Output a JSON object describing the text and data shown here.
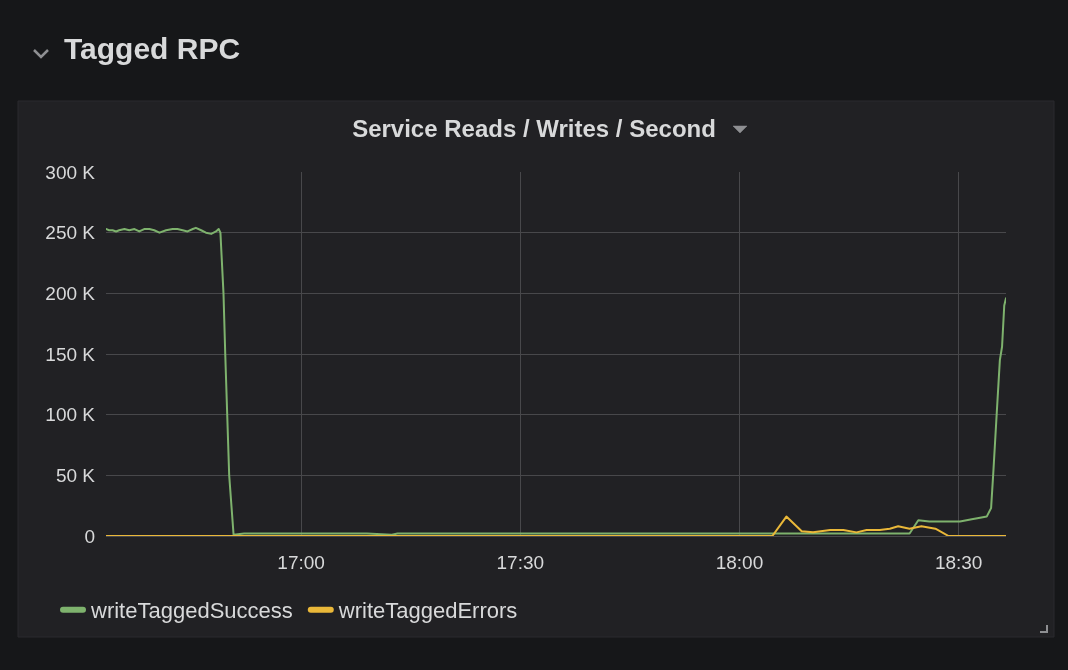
{
  "chart_data": {
    "type": "line",
    "title": "Service Reads / Writes / Second",
    "annotations": [
      "Tagged RPC"
    ],
    "series": [
      {
        "name": "writeTaggedSuccess",
        "color": "#7eb26d",
        "x": [
          16.555,
          16.562,
          16.57,
          16.578,
          16.585,
          16.597,
          16.608,
          16.62,
          16.631,
          16.642,
          16.654,
          16.665,
          16.677,
          16.692,
          16.707,
          16.718,
          16.73,
          16.741,
          16.753,
          16.76,
          16.772,
          16.783,
          16.795,
          16.806,
          16.812,
          16.816,
          16.823,
          16.827,
          16.836,
          16.846,
          16.87,
          16.95,
          17.05,
          17.15,
          17.207,
          17.22,
          17.4,
          17.6,
          17.8,
          18.0,
          18.2,
          18.388,
          18.408,
          18.433,
          18.467,
          18.503,
          18.533,
          18.549,
          18.564,
          18.574,
          18.579,
          18.587,
          18.594,
          18.599,
          18.604,
          18.608
        ],
        "values": [
          253000,
          252000,
          252000,
          251000,
          252000,
          253000,
          252000,
          253000,
          251000,
          253000,
          253000,
          252000,
          250000,
          252000,
          253000,
          253000,
          252000,
          251000,
          253000,
          254000,
          252000,
          250000,
          249000,
          251000,
          253000,
          250000,
          200000,
          150000,
          50000,
          1000,
          2000,
          2000,
          2000,
          2000,
          1000,
          2000,
          2000,
          2000,
          2000,
          2000,
          2000,
          2000,
          13000,
          12000,
          12000,
          12000,
          14000,
          15000,
          16000,
          23000,
          52000,
          102000,
          145000,
          156000,
          190000,
          196000
        ]
      },
      {
        "name": "writeTaggedErrors",
        "color": "#eab839",
        "x": [
          16.555,
          18.075,
          18.107,
          18.142,
          18.168,
          18.207,
          18.237,
          18.267,
          18.29,
          18.32,
          18.343,
          18.362,
          18.388,
          18.415,
          18.447,
          18.477,
          18.608
        ],
        "values": [
          0,
          0,
          16000,
          4000,
          3000,
          5000,
          5000,
          3000,
          5000,
          5000,
          6000,
          8000,
          6000,
          8000,
          6000,
          0,
          0
        ]
      }
    ],
    "xlim": [
      16.555,
      18.608
    ],
    "xticks": [
      {
        "value": 17,
        "label": "17:00"
      },
      {
        "value": 17.5,
        "label": "17:30"
      },
      {
        "value": 18,
        "label": "18:00"
      },
      {
        "value": 18.5,
        "label": "18:30"
      }
    ],
    "ylim": [
      0,
      300000
    ],
    "yticks": [
      0,
      {
        "value": 50000,
        "label": "50 K"
      },
      {
        "value": 100000,
        "label": "100 K"
      },
      {
        "value": 150000,
        "label": "150 K"
      },
      {
        "value": 200000,
        "label": "200 K"
      },
      {
        "value": 250000,
        "label": "250 K"
      },
      {
        "value": 300000,
        "label": "300 K"
      }
    ],
    "grid": true,
    "legend": "bottom left"
  }
}
